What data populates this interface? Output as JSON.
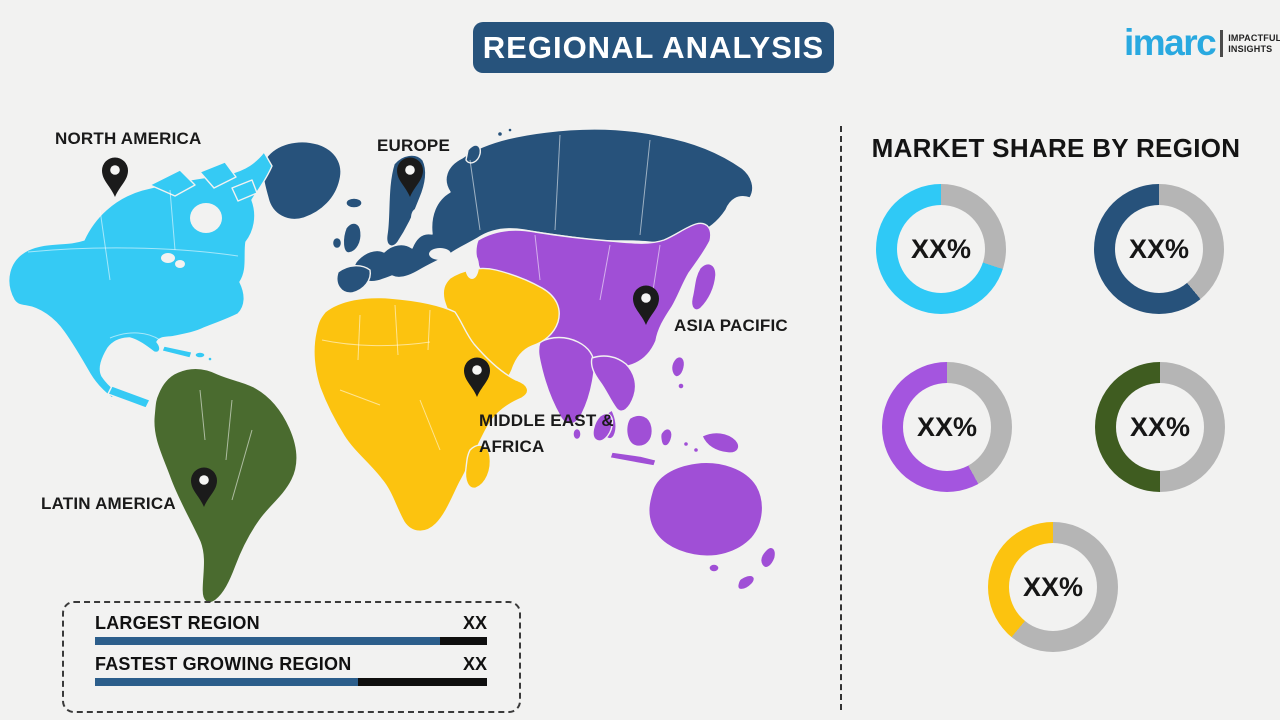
{
  "title": "REGIONAL ANALYSIS",
  "logo": {
    "brand": "imarc",
    "tagline_line1": "IMPACTFUL",
    "tagline_line2": "INSIGHTS",
    "brand_color": "#29A9E0"
  },
  "map": {
    "regions": [
      {
        "id": "north-america",
        "label": "NORTH AMERICA",
        "color": "#35CAF4"
      },
      {
        "id": "europe",
        "label": "EUROPE",
        "color": "#27527B"
      },
      {
        "id": "asia-pacific",
        "label": "ASIA PACIFIC",
        "color": "#A04FD6"
      },
      {
        "id": "middle-east-africa",
        "label": "MIDDLE EAST & AFRICA",
        "label_line1": "MIDDLE EAST &",
        "label_line2": "AFRICA",
        "color": "#FCC30F"
      },
      {
        "id": "latin-america",
        "label": "LATIN AMERICA",
        "color": "#4A6B2F"
      }
    ],
    "pin_color": "#1B1B1B"
  },
  "chart_data": [
    {
      "type": "pie",
      "variant": "donut",
      "title": "MARKET SHARE BY REGION",
      "legend_position": "none",
      "track_color": "#B5B5B5",
      "note": "All donut values are XX% placeholders; colored arc fractions estimated from pixels",
      "series": [
        {
          "name": "North America",
          "label": "XX%",
          "color": "#2FC9F6",
          "colored_fraction_pct": 70
        },
        {
          "name": "Europe",
          "label": "XX%",
          "color": "#27527B",
          "colored_fraction_pct": 61
        },
        {
          "name": "Asia Pacific",
          "label": "XX%",
          "color": "#A455DF",
          "colored_fraction_pct": 58
        },
        {
          "name": "Latin America",
          "label": "XX%",
          "color": "#3F5C20",
          "colored_fraction_pct": 50
        },
        {
          "name": "Middle East & Africa",
          "label": "XX%",
          "color": "#FCC30F",
          "colored_fraction_pct": 39
        }
      ]
    },
    {
      "type": "bar",
      "orientation": "horizontal",
      "categories": [
        "LARGEST REGION",
        "FASTEST GROWING REGION"
      ],
      "values": [
        "XX",
        "XX"
      ],
      "fill_fractions_pct": [
        88,
        67
      ],
      "bar_color": "#2C5E8B",
      "bar_track_color": "#0F0F0F"
    }
  ]
}
